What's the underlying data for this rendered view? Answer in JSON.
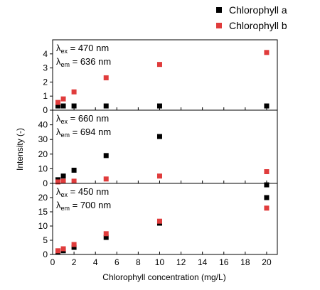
{
  "chart_data": {
    "type": "scatter",
    "xlabel": "Chlorophyll concentration (mg/L)",
    "ylabel": "Intensity (-)",
    "xlim": [
      0,
      21
    ],
    "xticks": [
      0,
      2,
      4,
      6,
      8,
      10,
      12,
      14,
      16,
      18,
      20
    ],
    "legend": {
      "placement": "top-right",
      "entries": [
        {
          "name": "Chlorophyll a",
          "color": "#000000"
        },
        {
          "name": "Chlorophyll b",
          "color": "#e03c3c"
        }
      ]
    },
    "x": [
      0.5,
      1,
      2,
      5,
      10,
      20
    ],
    "panels": [
      {
        "excitation": "470 nm",
        "emission": "636 nm",
        "ylim": [
          0,
          5
        ],
        "yticks": [
          0,
          1,
          2,
          3,
          4
        ],
        "series": [
          {
            "name": "Chlorophyll a",
            "values": [
              0.3,
              0.3,
              0.3,
              0.3,
              0.3,
              0.3
            ]
          },
          {
            "name": "Chlorophyll b",
            "values": [
              0.55,
              0.8,
              1.3,
              2.3,
              3.25,
              4.1
            ]
          }
        ]
      },
      {
        "excitation": "660 nm",
        "emission": "694 nm",
        "ylim": [
          0,
          50
        ],
        "yticks": [
          0,
          10,
          20,
          30,
          40
        ],
        "series": [
          {
            "name": "Chlorophyll a",
            "values": [
              2.5,
              5,
              9,
              19,
              32,
              -1
            ]
          },
          {
            "name": "Chlorophyll b",
            "values": [
              1,
              1.5,
              1.5,
              3,
              5,
              8
            ]
          }
        ]
      },
      {
        "excitation": "450 nm",
        "emission": "700 nm",
        "ylim": [
          0,
          25
        ],
        "yticks": [
          0,
          5,
          10,
          15,
          20
        ],
        "series": [
          {
            "name": "Chlorophyll a",
            "values": [
              1,
              1.3,
              2.5,
              6,
              11,
              20
            ]
          },
          {
            "name": "Chlorophyll b",
            "values": [
              1.3,
              2,
              3.5,
              7.3,
              11.7,
              16.3
            ]
          }
        ]
      }
    ]
  },
  "annotation_prefix": {
    "lambda": "λ",
    "ex": "ex",
    "em": "em",
    "equals": " = "
  }
}
